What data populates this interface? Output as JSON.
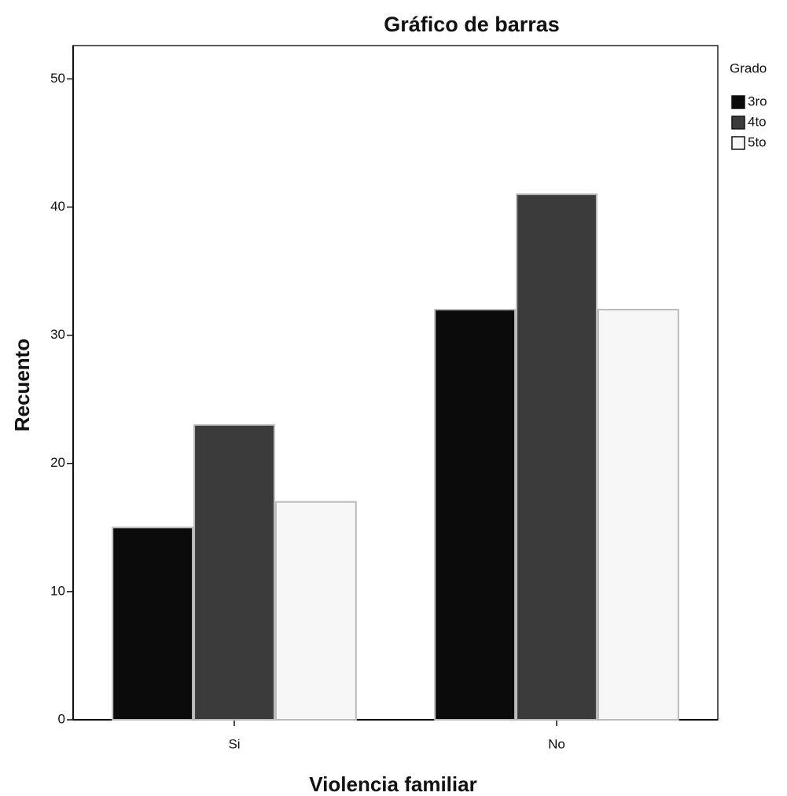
{
  "chart_data": {
    "type": "bar",
    "title": "Gráfico de barras",
    "x_label": "Violencia familiar",
    "y_label": "Recuento",
    "categories": [
      "Si",
      "No"
    ],
    "series": [
      {
        "name": "3ro",
        "color": "#0b0b0b",
        "values": [
          15,
          32
        ]
      },
      {
        "name": "4to",
        "color": "#3b3b3b",
        "values": [
          23,
          41
        ]
      },
      {
        "name": "5to",
        "color": "#f7f7f7",
        "values": [
          17,
          32
        ]
      }
    ],
    "legend_title": "Grado",
    "legend": "right",
    "ylim": [
      0,
      52.6
    ],
    "yticks": [
      0,
      10,
      20,
      30,
      40,
      50
    ],
    "grid": false
  }
}
